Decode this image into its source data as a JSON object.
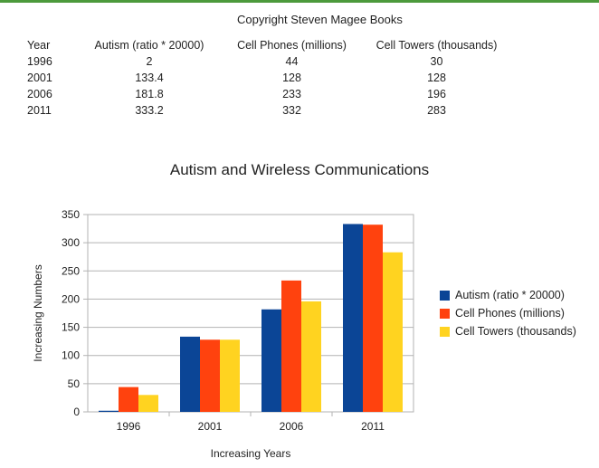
{
  "copyright": "Copyright Steven Magee Books",
  "table": {
    "headers": [
      "Year",
      "Autism (ratio * 20000)",
      "Cell Phones (millions)",
      "Cell Towers (thousands)"
    ],
    "rows": [
      [
        "1996",
        "2",
        "44",
        "30"
      ],
      [
        "2001",
        "133.4",
        "128",
        "128"
      ],
      [
        "2006",
        "181.8",
        "233",
        "196"
      ],
      [
        "2011",
        "333.2",
        "332",
        "283"
      ]
    ]
  },
  "chart_data": {
    "type": "bar",
    "title": "Autism and Wireless Communications",
    "xlabel": "Increasing Years",
    "ylabel": "Increasing Numbers",
    "categories": [
      "1996",
      "2001",
      "2006",
      "2011"
    ],
    "series": [
      {
        "name": "Autism (ratio * 20000)",
        "values": [
          2,
          133.4,
          181.8,
          333.2
        ],
        "color": "#0b4596"
      },
      {
        "name": "Cell Phones (millions)",
        "values": [
          44,
          128,
          233,
          332
        ],
        "color": "#ff420e"
      },
      {
        "name": "Cell Towers (thousands)",
        "values": [
          30,
          128,
          196,
          283
        ],
        "color": "#ffd320"
      }
    ],
    "ylim": [
      0,
      350
    ],
    "yticks": [
      0,
      50,
      100,
      150,
      200,
      250,
      300,
      350
    ],
    "grid": true,
    "legend_position": "right"
  }
}
